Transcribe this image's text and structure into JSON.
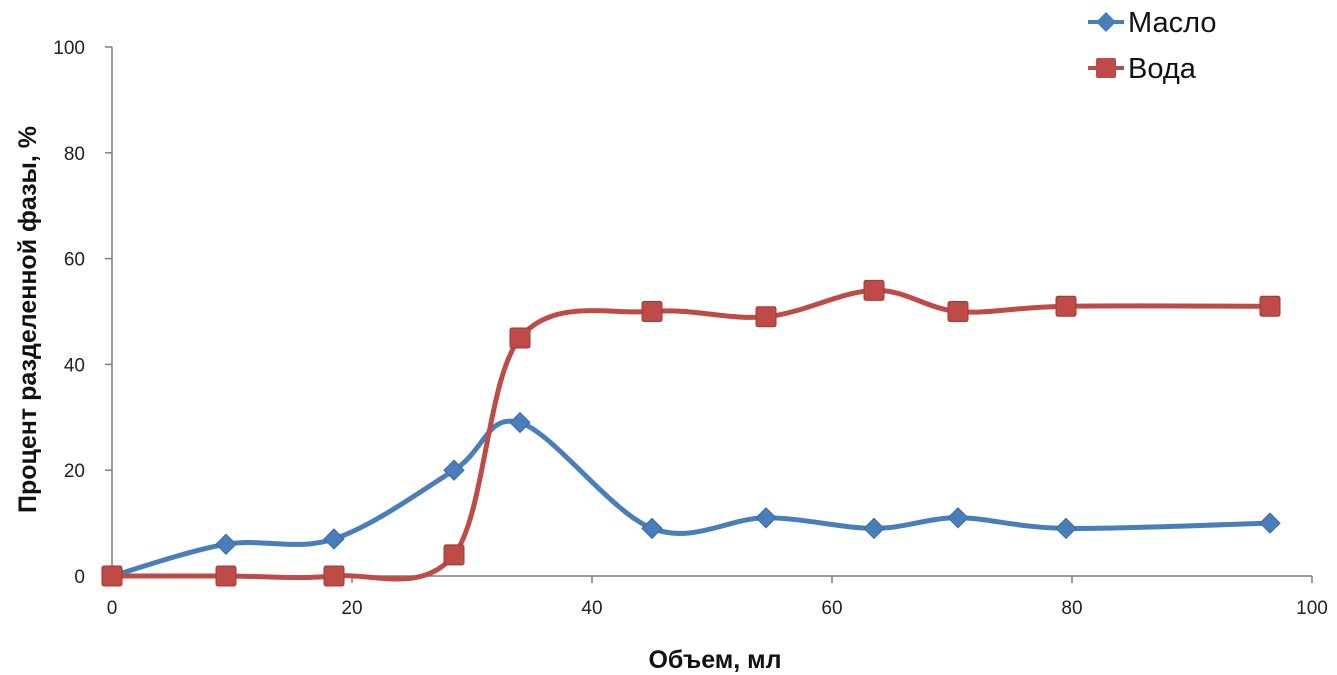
{
  "chart_data": {
    "type": "line",
    "title": "",
    "xlabel": "Объем, мл",
    "ylabel": "Процент разделенной фазы, %",
    "xlim": [
      0,
      100
    ],
    "ylim": [
      0,
      100
    ],
    "xticks": [
      0,
      20,
      40,
      60,
      80,
      100
    ],
    "yticks": [
      0,
      20,
      40,
      60,
      80,
      100
    ],
    "grid": false,
    "smooth": true,
    "legend_position": "top-right",
    "series": [
      {
        "name": "Масло",
        "color": "#4a7ebb",
        "marker": "diamond",
        "points": [
          [
            0,
            0
          ],
          [
            9.5,
            6
          ],
          [
            18.5,
            7
          ],
          [
            28.5,
            20
          ],
          [
            34,
            29
          ],
          [
            45,
            9
          ],
          [
            54.5,
            11
          ],
          [
            63.5,
            9
          ],
          [
            70.5,
            11
          ],
          [
            79.5,
            9
          ],
          [
            96.5,
            10
          ]
        ]
      },
      {
        "name": "Вода",
        "color": "#be4b48",
        "marker": "square",
        "points": [
          [
            0,
            0
          ],
          [
            9.5,
            0
          ],
          [
            18.5,
            0
          ],
          [
            28.5,
            4
          ],
          [
            34,
            45
          ],
          [
            45,
            50
          ],
          [
            54.5,
            49
          ],
          [
            63.5,
            54
          ],
          [
            70.5,
            50
          ],
          [
            79.5,
            51
          ],
          [
            96.5,
            51
          ]
        ]
      }
    ]
  }
}
